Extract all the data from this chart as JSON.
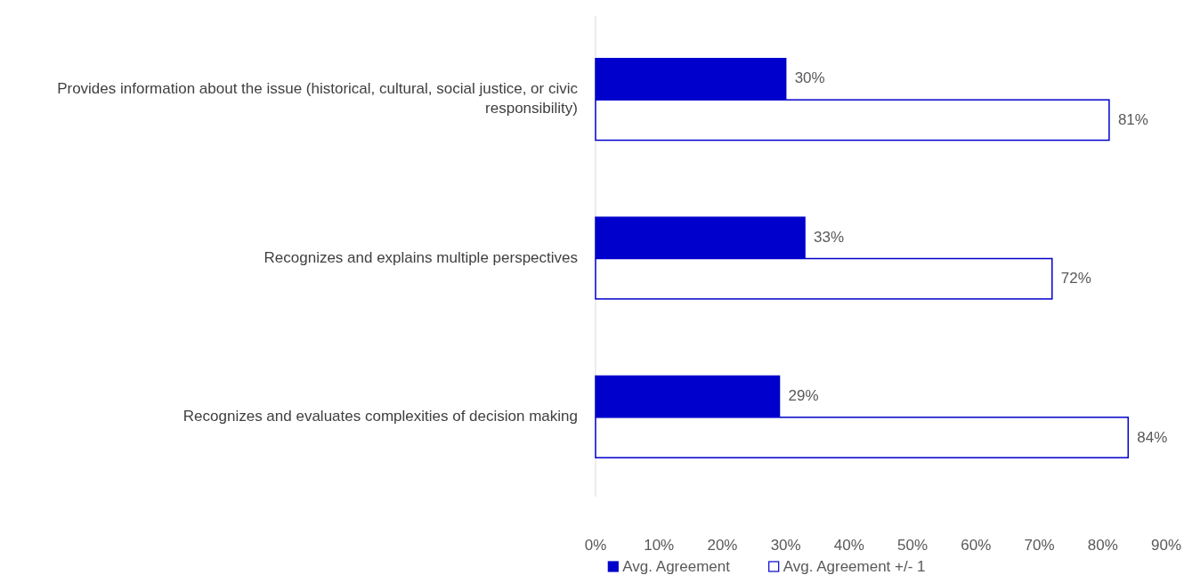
{
  "chart_data": {
    "type": "bar",
    "orientation": "horizontal",
    "categories": [
      "Provides information about the issue (historical, cultural, social justice, or civic responsibility)",
      "Recognizes and explains multiple perspectives",
      "Recognizes and evaluates complexities of decision making"
    ],
    "series": [
      {
        "name": "Avg. Agreement",
        "color": "#0000cc",
        "values": [
          30,
          33,
          29
        ],
        "value_labels": [
          "30%",
          "33%",
          "29%"
        ]
      },
      {
        "name": "Avg. Agreement +/- 1",
        "color": "#ffffff",
        "values": [
          81,
          72,
          84
        ],
        "value_labels": [
          "81%",
          "72%",
          "84%"
        ]
      }
    ],
    "xlim": [
      0,
      90
    ],
    "xticks": [
      {
        "value": 0,
        "label": "0%"
      },
      {
        "value": 10,
        "label": "10%"
      },
      {
        "value": 20,
        "label": "20%"
      },
      {
        "value": 30,
        "label": "30%"
      },
      {
        "value": 40,
        "label": "40%"
      },
      {
        "value": 50,
        "label": "50%"
      },
      {
        "value": 60,
        "label": "60%"
      },
      {
        "value": 70,
        "label": "70%"
      },
      {
        "value": 80,
        "label": "80%"
      },
      {
        "value": 90,
        "label": "90%"
      }
    ],
    "grid": false,
    "legend": "bottom"
  }
}
